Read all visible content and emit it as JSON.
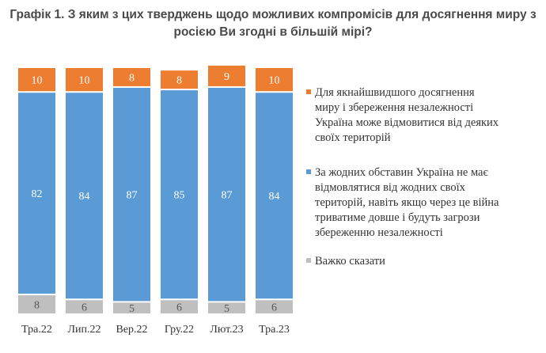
{
  "chart_data": {
    "type": "bar",
    "stacked": true,
    "title": "Графік 1. З яким з цих тверджень щодо можливих компромісів для досягнення миру з росією Ви згодні в більшій мірі?",
    "categories": [
      "Тра.22",
      "Лип.22",
      "Вер.22",
      "Гру.22",
      "Лют.23",
      "Тра.23"
    ],
    "series": [
      {
        "name": "Для якнайшвидшого досягнення миру і збереження незалежності Україна може відмовитися від деяких своїх територій",
        "color": "#ED7D31",
        "values": [
          10,
          10,
          8,
          8,
          9,
          10
        ]
      },
      {
        "name": "За жодних обставин Україна не має відмовлятися від жодних своїх територій, навіть якщо через це війна триватиме довше і будуть загрози збереженню незалежності",
        "color": "#5B9BD5",
        "values": [
          82,
          84,
          87,
          85,
          87,
          84
        ]
      },
      {
        "name": "Важко сказати",
        "color": "#BFBFBF",
        "values": [
          8,
          6,
          5,
          6,
          5,
          6
        ]
      }
    ],
    "legend_lines": [
      [
        "Для якнайшвидшого досягнення",
        "миру і збереження незалежності",
        "Україна може відмовитися від деяких",
        "своїх територій"
      ],
      [
        "За жодних обставин Україна не має",
        "відмовлятися від жодних своїх",
        "територій, навіть якщо через це війна",
        "триватиме довше і будуть загрози",
        "збереженню незалежності"
      ],
      [
        "Важко сказати"
      ]
    ],
    "legend_position": "right",
    "ylim": [
      0,
      100
    ],
    "grid": false
  }
}
